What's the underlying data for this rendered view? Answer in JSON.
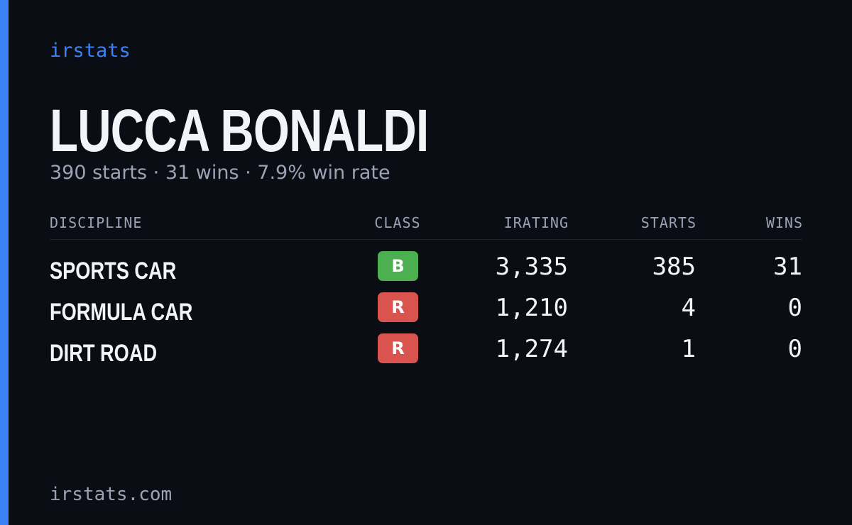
{
  "brand": "irstats",
  "driver": {
    "name": "LUCCA BONALDI",
    "summary": "390 starts · 31 wins · 7.9% win rate"
  },
  "table": {
    "headers": [
      "DISCIPLINE",
      "CLASS",
      "IRATING",
      "STARTS",
      "WINS"
    ],
    "rows": [
      [
        "SPORTS CAR",
        "B",
        "3,335",
        "385",
        "31"
      ],
      [
        "FORMULA CAR",
        "R",
        "1,210",
        "4",
        "0"
      ],
      [
        "DIRT ROAD",
        "R",
        "1,274",
        "1",
        "0"
      ]
    ],
    "class_colors": [
      "#4caf50",
      "#d9534f",
      "#d9534f"
    ]
  },
  "footer": "irstats.com"
}
